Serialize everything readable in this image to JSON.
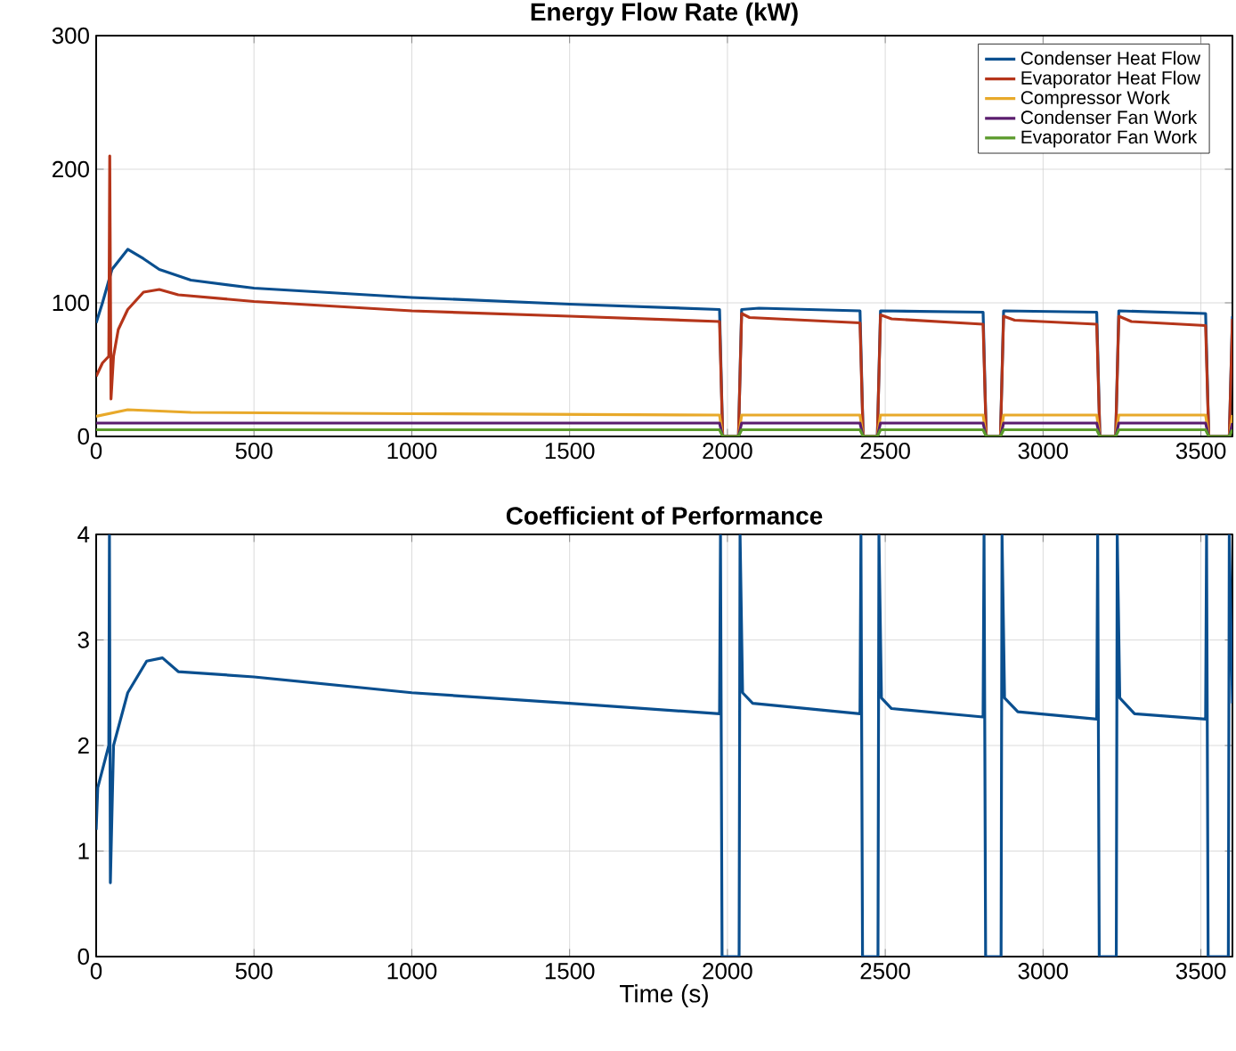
{
  "chart_data": [
    {
      "type": "line",
      "title": "Energy Flow Rate (kW)",
      "xlim": [
        0,
        3600
      ],
      "ylim": [
        0,
        300
      ],
      "xticks": [
        0,
        500,
        1000,
        1500,
        2000,
        2500,
        3000,
        3500
      ],
      "yticks": [
        0,
        100,
        200,
        300
      ],
      "grid": true,
      "legend": "top right",
      "series": [
        {
          "name": "Condenser Heat Flow",
          "color": "#0a4f8f",
          "x": [
            0,
            20,
            50,
            100,
            150,
            200,
            300,
            500,
            1000,
            1500,
            1975,
            1985,
            2035,
            2045,
            2100,
            2420,
            2430,
            2475,
            2485,
            2810,
            2820,
            2865,
            2875,
            3170,
            3180,
            3230,
            3240,
            3515,
            3525,
            3590,
            3600
          ],
          "values": [
            85,
            100,
            125,
            140,
            133,
            125,
            117,
            111,
            104,
            99,
            95,
            0,
            0,
            95,
            96,
            94,
            0,
            0,
            94,
            93,
            0,
            0,
            94,
            93,
            0,
            0,
            94,
            92,
            0,
            0,
            90
          ]
        },
        {
          "name": "Evaporator Heat Flow",
          "color": "#b5351a",
          "x": [
            0,
            20,
            40,
            43,
            47,
            55,
            70,
            100,
            150,
            200,
            230,
            260,
            500,
            1000,
            1500,
            1975,
            1985,
            2035,
            2045,
            2070,
            2420,
            2430,
            2475,
            2485,
            2520,
            2810,
            2820,
            2865,
            2875,
            2910,
            3170,
            3180,
            3230,
            3240,
            3280,
            3515,
            3525,
            3590,
            3600
          ],
          "values": [
            45,
            55,
            60,
            210,
            28,
            60,
            80,
            95,
            108,
            110,
            108,
            106,
            101,
            94,
            90,
            86,
            0,
            0,
            92,
            89,
            85,
            0,
            0,
            91,
            88,
            84,
            0,
            0,
            90,
            87,
            84,
            0,
            0,
            90,
            86,
            83,
            0,
            0,
            88
          ]
        },
        {
          "name": "Compressor Work",
          "color": "#e8a92a",
          "x": [
            0,
            100,
            300,
            1000,
            1975,
            1985,
            2035,
            2045,
            2420,
            2430,
            2475,
            2485,
            2810,
            2820,
            2865,
            2875,
            3170,
            3180,
            3230,
            3240,
            3515,
            3525,
            3590,
            3600
          ],
          "values": [
            15,
            20,
            18,
            17,
            16,
            0,
            0,
            16,
            16,
            0,
            0,
            16,
            16,
            0,
            0,
            16,
            16,
            0,
            0,
            16,
            16,
            0,
            0,
            16
          ]
        },
        {
          "name": "Condenser Fan Work",
          "color": "#5a1d6e",
          "x": [
            0,
            1975,
            1985,
            2035,
            2045,
            2420,
            2430,
            2475,
            2485,
            2810,
            2820,
            2865,
            2875,
            3170,
            3180,
            3230,
            3240,
            3515,
            3525,
            3590,
            3600
          ],
          "values": [
            10,
            10,
            0,
            0,
            10,
            10,
            0,
            0,
            10,
            10,
            0,
            0,
            10,
            10,
            0,
            0,
            10,
            10,
            0,
            0,
            10
          ]
        },
        {
          "name": "Evaporator Fan Work",
          "color": "#5a9a2a",
          "x": [
            0,
            1975,
            1985,
            2035,
            2045,
            2420,
            2430,
            2475,
            2485,
            2810,
            2820,
            2865,
            2875,
            3170,
            3180,
            3230,
            3240,
            3515,
            3525,
            3590,
            3600
          ],
          "values": [
            5,
            5,
            0,
            0,
            5,
            5,
            0,
            0,
            5,
            5,
            0,
            0,
            5,
            5,
            0,
            0,
            5,
            5,
            0,
            0,
            5
          ]
        }
      ]
    },
    {
      "type": "line",
      "title": "Coefficient of Performance",
      "xlabel": "Time (s)",
      "xlim": [
        0,
        3600
      ],
      "ylim": [
        0,
        4
      ],
      "xticks": [
        0,
        500,
        1000,
        1500,
        2000,
        2500,
        3000,
        3500
      ],
      "yticks": [
        0,
        1,
        2,
        3,
        4
      ],
      "grid": true,
      "series": [
        {
          "color": "#0a4f8f",
          "x": [
            0,
            5,
            40,
            42,
            45,
            55,
            100,
            160,
            210,
            260,
            500,
            1000,
            1500,
            1975,
            1978,
            1983,
            2037,
            2040,
            2048,
            2080,
            2420,
            2423,
            2428,
            2477,
            2480,
            2488,
            2520,
            2810,
            2813,
            2818,
            2867,
            2870,
            2878,
            2920,
            3170,
            3173,
            3178,
            3232,
            3235,
            3243,
            3290,
            3515,
            3518,
            3523,
            3587,
            3590,
            3600
          ],
          "values": [
            1.2,
            1.6,
            2.0,
            4,
            0.7,
            2.0,
            2.5,
            2.8,
            2.83,
            2.7,
            2.65,
            2.5,
            2.4,
            2.3,
            4,
            0,
            0,
            4,
            2.5,
            2.4,
            2.3,
            4,
            0,
            0,
            4,
            2.45,
            2.35,
            2.27,
            4,
            0,
            0,
            4,
            2.45,
            2.32,
            2.25,
            4,
            0,
            0,
            4,
            2.45,
            2.3,
            2.25,
            4,
            0,
            0,
            4,
            2.4
          ]
        }
      ]
    }
  ]
}
